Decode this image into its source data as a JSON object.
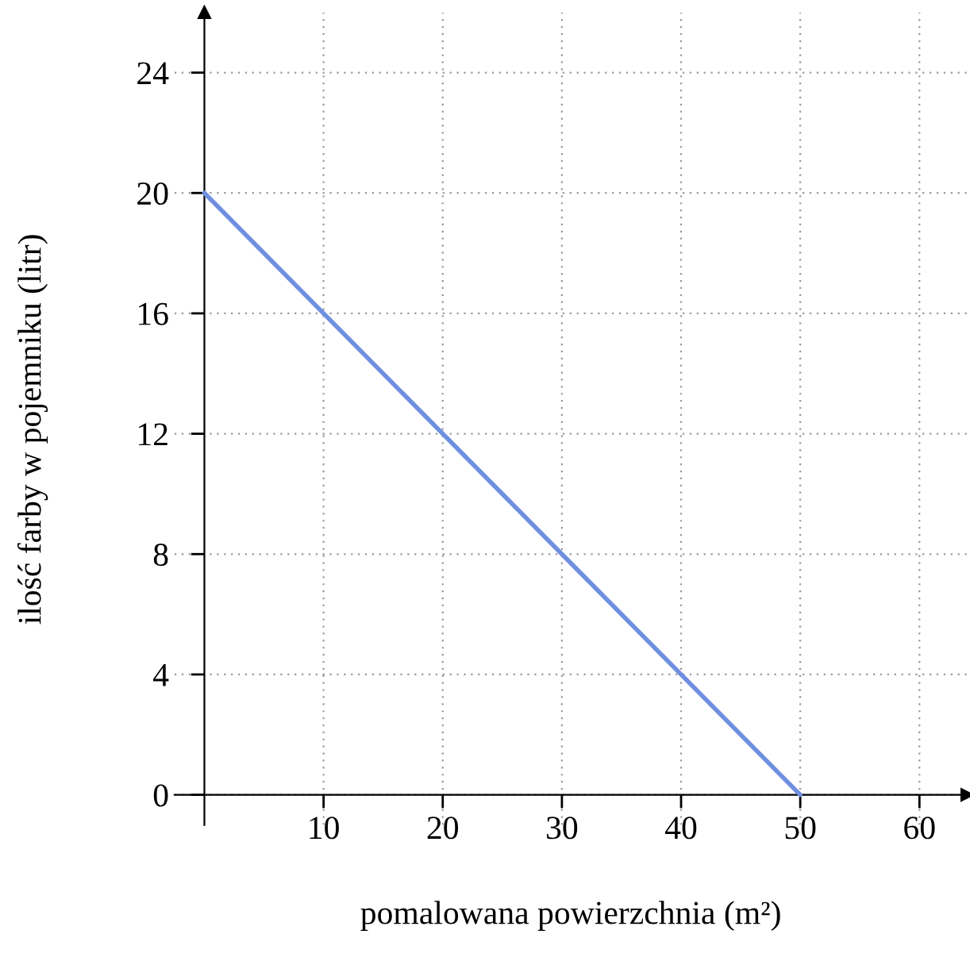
{
  "chart_data": {
    "type": "line",
    "xlabel": "pomalowana powierzchnia (m²)",
    "ylabel": "ilość farby w pojemniku (litr)",
    "x": [
      0,
      50
    ],
    "series": [
      {
        "color": "#6f8fe0",
        "values": [
          20,
          0
        ]
      }
    ],
    "xlim": [
      -2.5,
      64
    ],
    "ylim": [
      -1,
      26
    ],
    "xticks": [
      10,
      20,
      30,
      40,
      50,
      60
    ],
    "yticks": [
      0,
      4,
      8,
      12,
      16,
      20,
      24
    ],
    "grid": true,
    "legend": false,
    "marker": "none",
    "line_style": "solid"
  }
}
